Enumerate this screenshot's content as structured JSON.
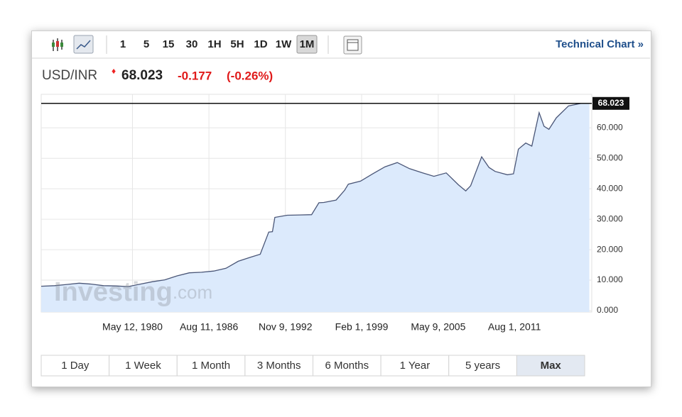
{
  "toolbar": {
    "intervals": [
      "1",
      "5",
      "15",
      "30",
      "1H",
      "5H",
      "1D",
      "1W",
      "1M"
    ],
    "active_interval": "1M",
    "link": "Technical Chart »"
  },
  "quote": {
    "symbol": "USD/INR",
    "price": "68.023",
    "change": "-0.177",
    "change_pct": "(-0.26%)"
  },
  "watermark": {
    "brand": "Investing",
    "suffix": ".com"
  },
  "chart_data": {
    "type": "area",
    "line_color": "#4a5677",
    "fill_color": "#dceafc",
    "x": [
      1972.9,
      1974,
      1975,
      1976,
      1977,
      1978,
      1979,
      1980,
      1981,
      1982,
      1983,
      1984,
      1985,
      1986,
      1987,
      1988,
      1989,
      1990,
      1990.8,
      1991.5,
      1991.8,
      1992,
      1993,
      1994,
      1995,
      1995.6,
      1996,
      1997,
      1997.7,
      1998,
      1999,
      2000,
      2001,
      2002,
      2003,
      2004,
      2005,
      2006,
      2007,
      2007.6,
      2008,
      2008.9,
      2009.5,
      2010,
      2011,
      2011.5,
      2011.9,
      2012.5,
      2013,
      2013.6,
      2014,
      2014.4,
      2015,
      2016,
      2017,
      2017.7
    ],
    "values": [
      8.0,
      8.2,
      8.6,
      9.0,
      8.7,
      8.2,
      8.1,
      7.9,
      8.7,
      9.5,
      10.1,
      11.4,
      12.4,
      12.6,
      13.0,
      13.9,
      16.2,
      17.5,
      18.5,
      25.8,
      25.9,
      30.6,
      31.3,
      31.4,
      31.5,
      35.4,
      35.5,
      36.3,
      39.5,
      41.5,
      42.5,
      44.9,
      47.2,
      48.6,
      46.6,
      45.3,
      44.1,
      45.2,
      41.3,
      39.3,
      41.0,
      50.5,
      47.0,
      45.7,
      44.6,
      44.9,
      53.0,
      55.0,
      54.0,
      65.0,
      60.5,
      59.5,
      63.3,
      67.2,
      68.0,
      68.023
    ],
    "xlim": [
      1972.9,
      2017.9
    ],
    "ylim": [
      0,
      71
    ],
    "xticks": [
      {
        "value": 1980.36,
        "label": "May 12, 1980"
      },
      {
        "value": 1986.61,
        "label": "Aug 11, 1986"
      },
      {
        "value": 1992.86,
        "label": "Nov 9, 1992"
      },
      {
        "value": 1999.09,
        "label": "Feb 1, 1999"
      },
      {
        "value": 2005.35,
        "label": "May 9, 2005"
      },
      {
        "value": 2011.58,
        "label": "Aug 1, 2011"
      }
    ],
    "yticks": [
      {
        "value": 0,
        "label": "0.000"
      },
      {
        "value": 10,
        "label": "10.000"
      },
      {
        "value": 20,
        "label": "20.000"
      },
      {
        "value": 30,
        "label": "30.000"
      },
      {
        "value": 40,
        "label": "40.000"
      },
      {
        "value": 50,
        "label": "50.000"
      },
      {
        "value": 60,
        "label": "60.000"
      }
    ],
    "price_line": 68.023,
    "grid": true
  },
  "ranges": [
    "1 Day",
    "1 Week",
    "1 Month",
    "3 Months",
    "6 Months",
    "1 Year",
    "5 years",
    "Max"
  ],
  "active_range": "Max"
}
